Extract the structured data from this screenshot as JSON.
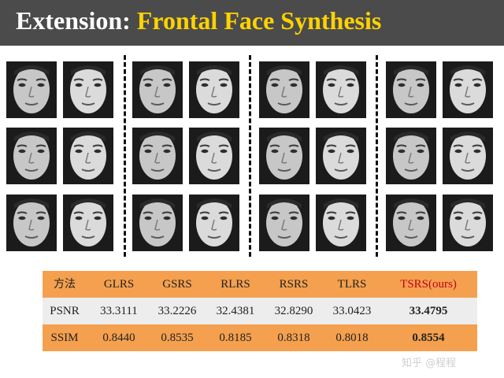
{
  "header": {
    "title_prefix": "Extension:",
    "title_main": "Frontal Face Synthesis"
  },
  "colors": {
    "title_bar": "#4b4b4b",
    "title_accent": "#ffd200",
    "table_orange": "#f4a04e",
    "table_grey": "#ededed",
    "tsrs_red": "#c0001a"
  },
  "figure": {
    "groups": 4,
    "rows": 3,
    "faces_per_group_row": 2
  },
  "table": {
    "header": [
      "方法",
      "GLRS",
      "GSRS",
      "RLRS",
      "RSRS",
      "TLRS",
      "TSRS(ours)"
    ],
    "rows": [
      {
        "metric": "PSNR",
        "values": [
          "33.3111",
          "33.2226",
          "32.4381",
          "32.8290",
          "33.0423",
          "33.4795"
        ]
      },
      {
        "metric": "SSIM",
        "values": [
          "0.8440",
          "0.8535",
          "0.8185",
          "0.8318",
          "0.8018",
          "0.8554"
        ]
      }
    ]
  },
  "watermark": "知乎 @程程"
}
